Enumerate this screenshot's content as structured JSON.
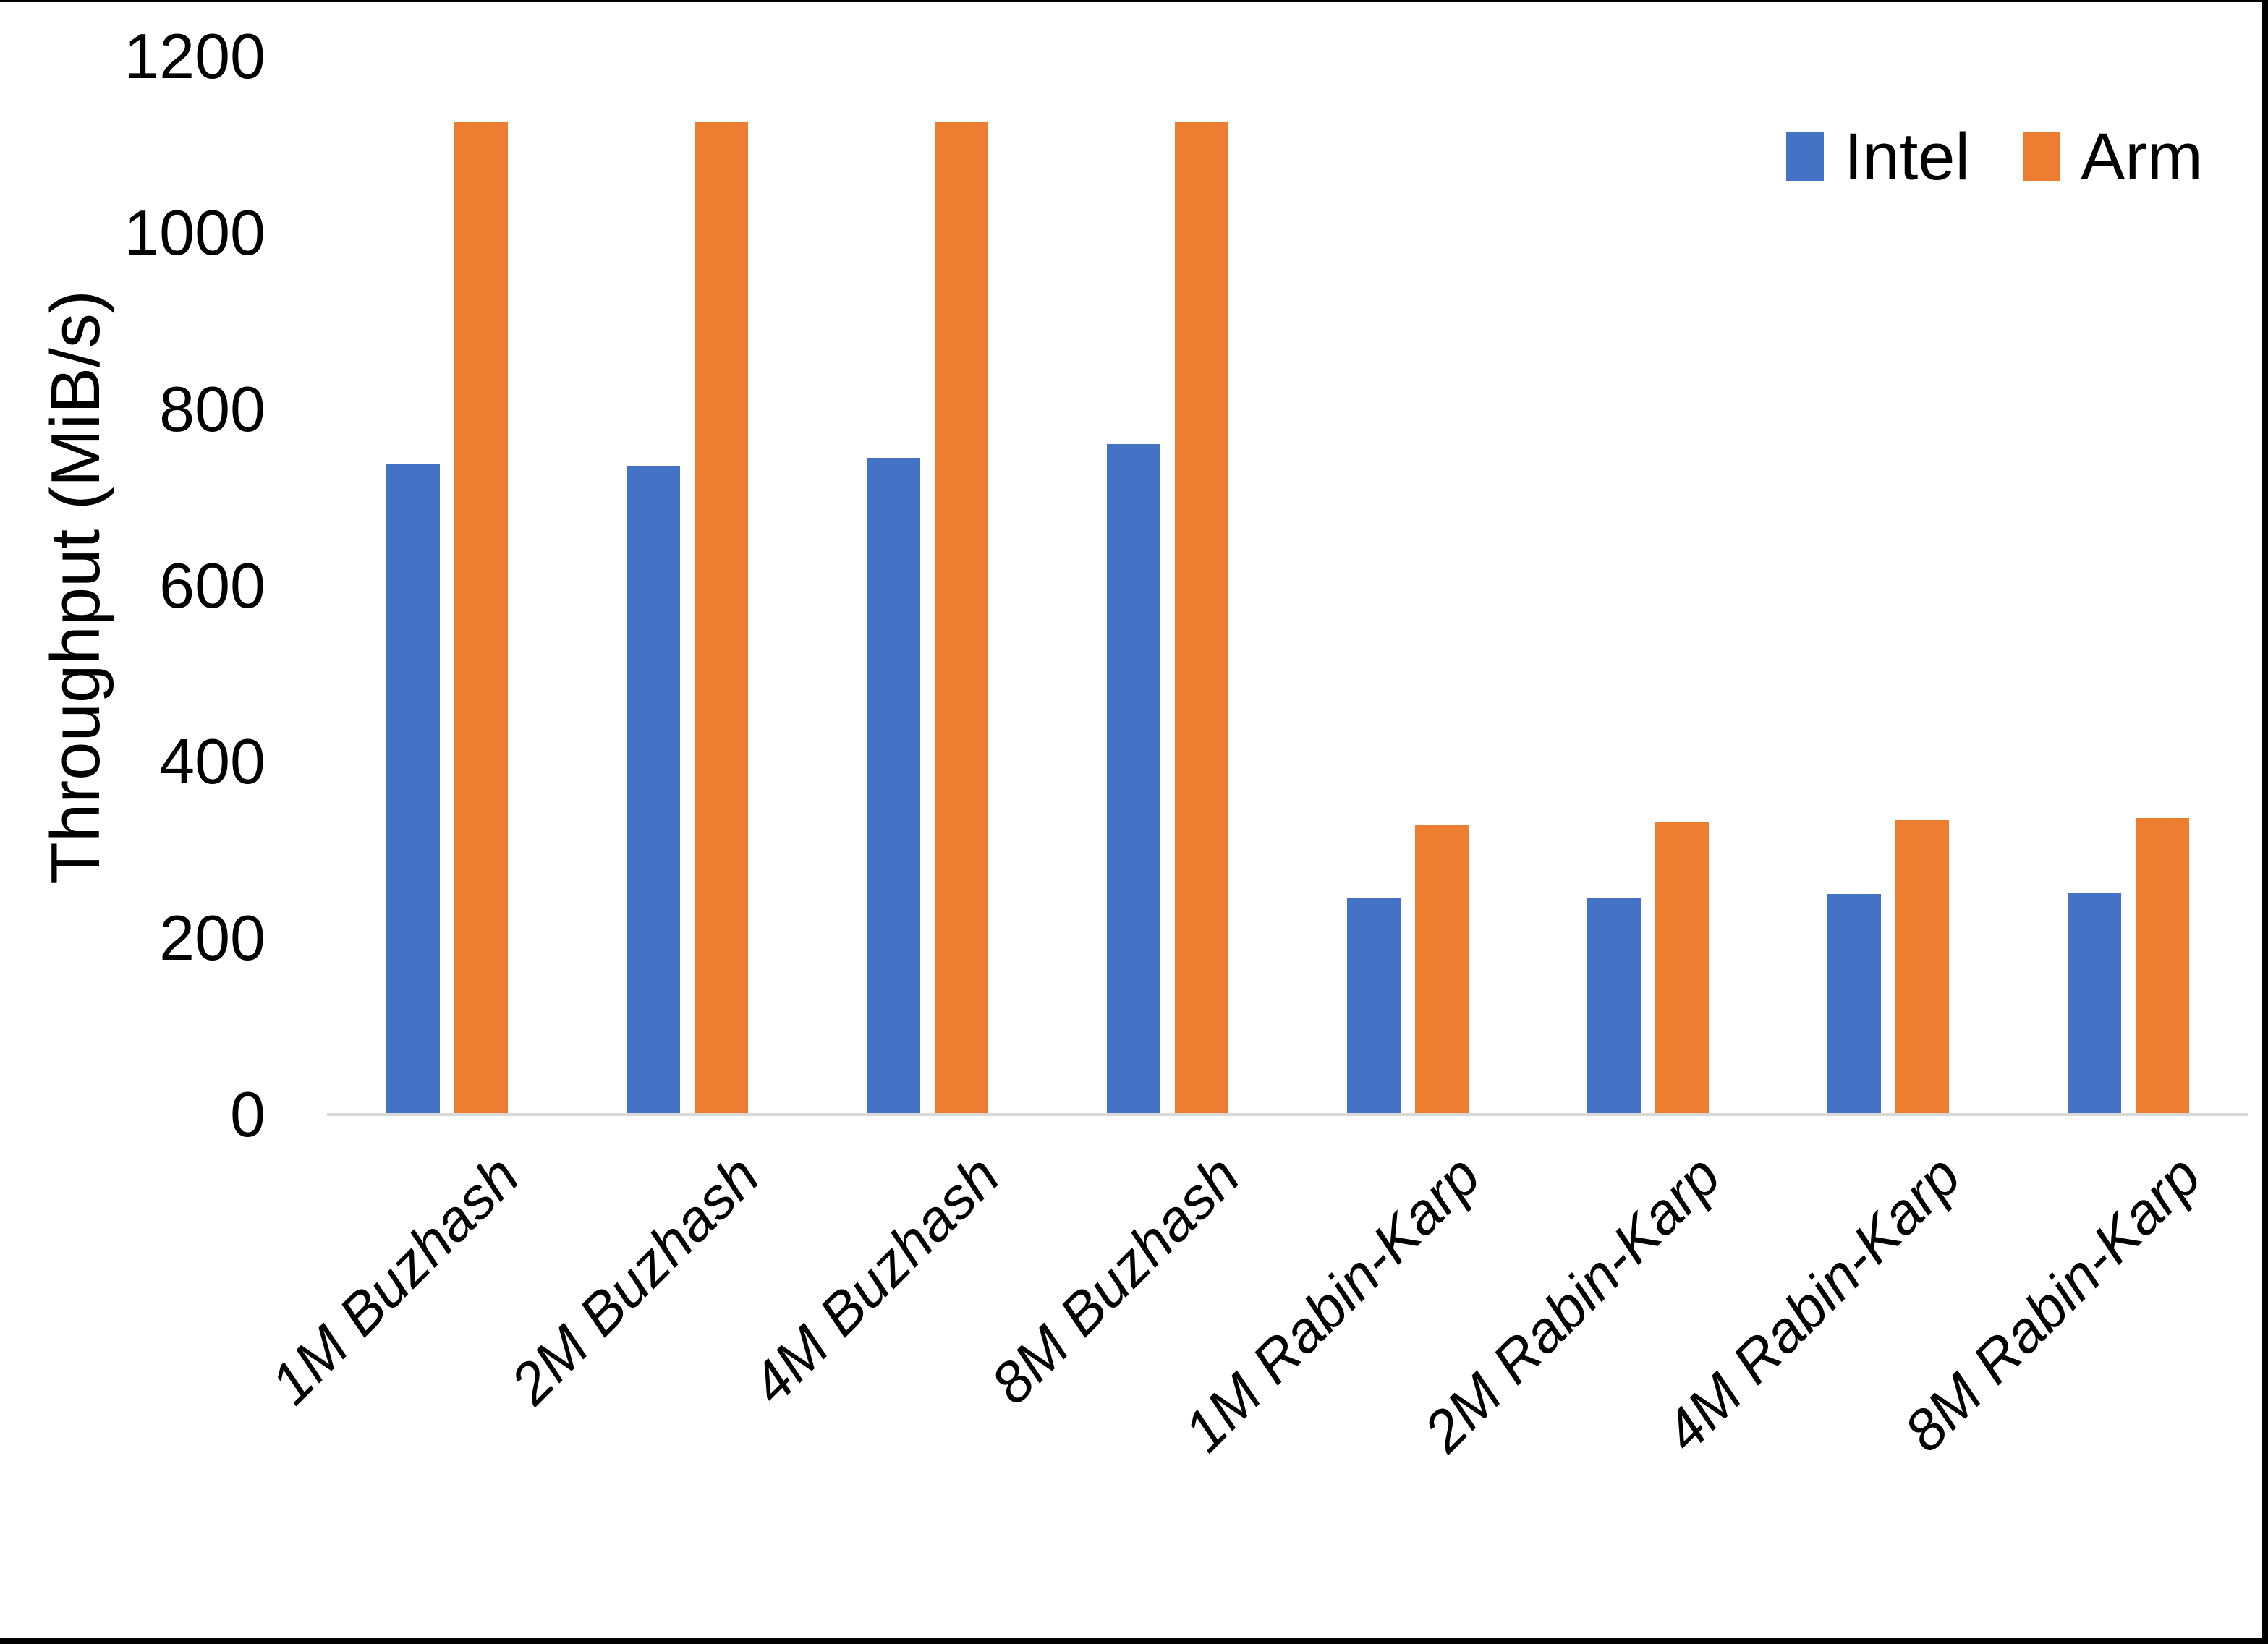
{
  "chart_data": {
    "type": "bar",
    "title": "",
    "xlabel": "",
    "ylabel": "Throughput (MiB/s)",
    "categories": [
      "1M Buzhash",
      "2M Buzhash",
      "4M Buzhash",
      "8M Buzhash",
      "1M Rabin-Karp",
      "2M Rabin-Karp",
      "4M Rabin-Karp",
      "8M Rabin-Karp"
    ],
    "series": [
      {
        "name": "Intel",
        "color": "#4472C4",
        "values": [
          737,
          736,
          745,
          760,
          246,
          246,
          250,
          251
        ]
      },
      {
        "name": "Arm",
        "color": "#ED7D31",
        "values": [
          1125,
          1125,
          1125,
          1125,
          328,
          331,
          334,
          336
        ]
      }
    ],
    "ylim": [
      0,
      1200
    ],
    "yticks": [
      0,
      200,
      400,
      600,
      800,
      1000,
      1200
    ],
    "grid": false,
    "legend_position": "top-right",
    "axis_line_color": "#D9D9D9",
    "text_color": "#000000",
    "background_color": "#ffffff",
    "category_label_style": "italic, rotated 45deg",
    "frame_border_color": "#000000"
  }
}
